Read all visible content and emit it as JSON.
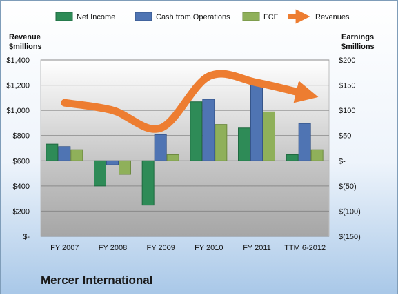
{
  "chart_data": {
    "type": "bar",
    "title": "Mercer International",
    "categories": [
      "FY 2007",
      "FY 2008",
      "FY 2009",
      "FY 2010",
      "FY 2011",
      "TTM 6-2012"
    ],
    "left_axis": {
      "label_line1": "Revenue",
      "label_line2": "$millions",
      "ylim": [
        0,
        1400
      ],
      "ticks": [
        {
          "value": 0,
          "label": "$-"
        },
        {
          "value": 200,
          "label": "$200"
        },
        {
          "value": 400,
          "label": "$400"
        },
        {
          "value": 600,
          "label": "$600"
        },
        {
          "value": 800,
          "label": "$800"
        },
        {
          "value": 1000,
          "label": "$1,000"
        },
        {
          "value": 1200,
          "label": "$1,200"
        },
        {
          "value": 1400,
          "label": "$1,400"
        }
      ]
    },
    "right_axis": {
      "label_line1": "Earnings",
      "label_line2": "$millions",
      "ylim": [
        -150,
        200
      ],
      "ticks": [
        {
          "value": -150,
          "label": "$(150)"
        },
        {
          "value": -100,
          "label": "$(100)"
        },
        {
          "value": -50,
          "label": "$(50)"
        },
        {
          "value": 0,
          "label": "$-"
        },
        {
          "value": 50,
          "label": "$50"
        },
        {
          "value": 100,
          "label": "$100"
        },
        {
          "value": 150,
          "label": "$150"
        },
        {
          "value": 200,
          "label": "$200"
        }
      ]
    },
    "series": [
      {
        "name": "Net Income",
        "axis": "right",
        "color": "#2e8b57",
        "values": [
          33,
          -50,
          -88,
          117,
          65,
          12
        ]
      },
      {
        "name": "Cash from Operations",
        "axis": "right",
        "color": "#4f74b3",
        "values": [
          28,
          -8,
          52,
          122,
          158,
          74
        ]
      },
      {
        "name": "FCF",
        "axis": "right",
        "color": "#8fb05a",
        "values": [
          22,
          -27,
          12,
          72,
          97,
          22
        ]
      }
    ],
    "line_series": {
      "name": "Revenues",
      "axis": "left",
      "color": "#ed7d31",
      "values": [
        1060,
        1000,
        860,
        1270,
        1220,
        1130
      ]
    },
    "legend_position": "top",
    "grid": true
  }
}
